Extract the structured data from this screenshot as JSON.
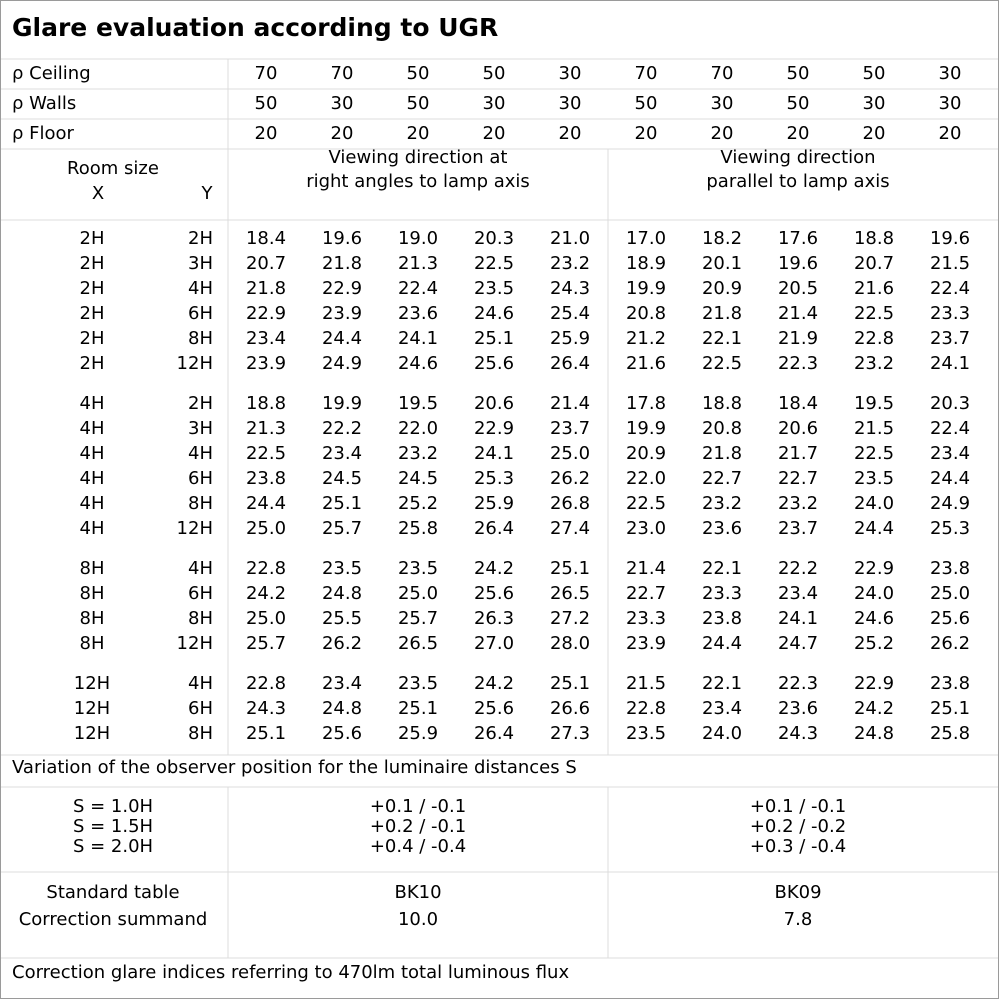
{
  "title": "Glare evaluation according to UGR",
  "reflectances": [
    {
      "label": "ρ Ceiling",
      "values": [
        "70",
        "70",
        "50",
        "50",
        "30",
        "70",
        "70",
        "50",
        "50",
        "30"
      ]
    },
    {
      "label": "ρ Walls",
      "values": [
        "50",
        "30",
        "50",
        "30",
        "30",
        "50",
        "30",
        "50",
        "30",
        "30"
      ]
    },
    {
      "label": "ρ Floor",
      "values": [
        "20",
        "20",
        "20",
        "20",
        "20",
        "20",
        "20",
        "20",
        "20",
        "20"
      ]
    }
  ],
  "room_size": {
    "label": "Room size",
    "x": "X",
    "y": "Y"
  },
  "directions": [
    [
      "Viewing direction at",
      "right angles to lamp axis"
    ],
    [
      "Viewing direction",
      "parallel to lamp axis"
    ]
  ],
  "groups": [
    [
      {
        "x": "2H",
        "y": "2H",
        "values": [
          "18.4",
          "19.6",
          "19.0",
          "20.3",
          "21.0",
          "17.0",
          "18.2",
          "17.6",
          "18.8",
          "19.6"
        ]
      },
      {
        "x": "2H",
        "y": "3H",
        "values": [
          "20.7",
          "21.8",
          "21.3",
          "22.5",
          "23.2",
          "18.9",
          "20.1",
          "19.6",
          "20.7",
          "21.5"
        ]
      },
      {
        "x": "2H",
        "y": "4H",
        "values": [
          "21.8",
          "22.9",
          "22.4",
          "23.5",
          "24.3",
          "19.9",
          "20.9",
          "20.5",
          "21.6",
          "22.4"
        ]
      },
      {
        "x": "2H",
        "y": "6H",
        "values": [
          "22.9",
          "23.9",
          "23.6",
          "24.6",
          "25.4",
          "20.8",
          "21.8",
          "21.4",
          "22.5",
          "23.3"
        ]
      },
      {
        "x": "2H",
        "y": "8H",
        "values": [
          "23.4",
          "24.4",
          "24.1",
          "25.1",
          "25.9",
          "21.2",
          "22.1",
          "21.9",
          "22.8",
          "23.7"
        ]
      },
      {
        "x": "2H",
        "y": "12H",
        "values": [
          "23.9",
          "24.9",
          "24.6",
          "25.6",
          "26.4",
          "21.6",
          "22.5",
          "22.3",
          "23.2",
          "24.1"
        ]
      }
    ],
    [
      {
        "x": "4H",
        "y": "2H",
        "values": [
          "18.8",
          "19.9",
          "19.5",
          "20.6",
          "21.4",
          "17.8",
          "18.8",
          "18.4",
          "19.5",
          "20.3"
        ]
      },
      {
        "x": "4H",
        "y": "3H",
        "values": [
          "21.3",
          "22.2",
          "22.0",
          "22.9",
          "23.7",
          "19.9",
          "20.8",
          "20.6",
          "21.5",
          "22.4"
        ]
      },
      {
        "x": "4H",
        "y": "4H",
        "values": [
          "22.5",
          "23.4",
          "23.2",
          "24.1",
          "25.0",
          "20.9",
          "21.8",
          "21.7",
          "22.5",
          "23.4"
        ]
      },
      {
        "x": "4H",
        "y": "6H",
        "values": [
          "23.8",
          "24.5",
          "24.5",
          "25.3",
          "26.2",
          "22.0",
          "22.7",
          "22.7",
          "23.5",
          "24.4"
        ]
      },
      {
        "x": "4H",
        "y": "8H",
        "values": [
          "24.4",
          "25.1",
          "25.2",
          "25.9",
          "26.8",
          "22.5",
          "23.2",
          "23.2",
          "24.0",
          "24.9"
        ]
      },
      {
        "x": "4H",
        "y": "12H",
        "values": [
          "25.0",
          "25.7",
          "25.8",
          "26.4",
          "27.4",
          "23.0",
          "23.6",
          "23.7",
          "24.4",
          "25.3"
        ]
      }
    ],
    [
      {
        "x": "8H",
        "y": "4H",
        "values": [
          "22.8",
          "23.5",
          "23.5",
          "24.2",
          "25.1",
          "21.4",
          "22.1",
          "22.2",
          "22.9",
          "23.8"
        ]
      },
      {
        "x": "8H",
        "y": "6H",
        "values": [
          "24.2",
          "24.8",
          "25.0",
          "25.6",
          "26.5",
          "22.7",
          "23.3",
          "23.4",
          "24.0",
          "25.0"
        ]
      },
      {
        "x": "8H",
        "y": "8H",
        "values": [
          "25.0",
          "25.5",
          "25.7",
          "26.3",
          "27.2",
          "23.3",
          "23.8",
          "24.1",
          "24.6",
          "25.6"
        ]
      },
      {
        "x": "8H",
        "y": "12H",
        "values": [
          "25.7",
          "26.2",
          "26.5",
          "27.0",
          "28.0",
          "23.9",
          "24.4",
          "24.7",
          "25.2",
          "26.2"
        ]
      }
    ],
    [
      {
        "x": "12H",
        "y": "4H",
        "values": [
          "22.8",
          "23.4",
          "23.5",
          "24.2",
          "25.1",
          "21.5",
          "22.1",
          "22.3",
          "22.9",
          "23.8"
        ]
      },
      {
        "x": "12H",
        "y": "6H",
        "values": [
          "24.3",
          "24.8",
          "25.1",
          "25.6",
          "26.6",
          "22.8",
          "23.4",
          "23.6",
          "24.2",
          "25.1"
        ]
      },
      {
        "x": "12H",
        "y": "8H",
        "values": [
          "25.1",
          "25.6",
          "25.9",
          "26.4",
          "27.3",
          "23.5",
          "24.0",
          "24.3",
          "24.8",
          "25.8"
        ]
      }
    ]
  ],
  "variation": {
    "title": "Variation of the observer position for the luminaire distances S",
    "rows": [
      {
        "s": "S = 1.0H",
        "right_angles": "+0.1 / -0.1",
        "parallel": "+0.1 / -0.1"
      },
      {
        "s": "S = 1.5H",
        "right_angles": "+0.2 / -0.1",
        "parallel": "+0.2 / -0.2"
      },
      {
        "s": "S = 2.0H",
        "right_angles": "+0.4 / -0.4",
        "parallel": "+0.3 / -0.4"
      }
    ]
  },
  "standard": {
    "labels": [
      "Standard table",
      "Correction summand"
    ],
    "right_angles": [
      "BK10",
      "10.0"
    ],
    "parallel": [
      "BK09",
      "7.8"
    ]
  },
  "footer": "Correction glare indices referring to 470lm total luminous flux"
}
